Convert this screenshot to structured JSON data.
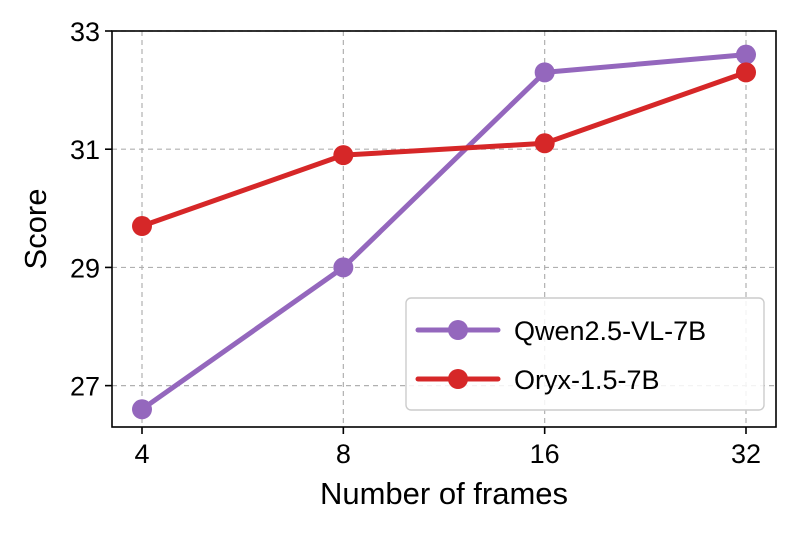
{
  "chart_data": {
    "type": "line",
    "title": "",
    "xlabel": "Number of frames",
    "ylabel": "Score",
    "categories": [
      "4",
      "8",
      "16",
      "32"
    ],
    "yticks": [
      "27",
      "29",
      "31",
      "33"
    ],
    "ylim": [
      26.3,
      33
    ],
    "grid": true,
    "legend_position": "lower-right",
    "series": [
      {
        "name": "Qwen2.5-VL-7B",
        "color": "#9467bd",
        "values": [
          26.6,
          29.0,
          32.3,
          32.6
        ]
      },
      {
        "name": "Oryx-1.5-7B",
        "color": "#d62728",
        "values": [
          29.7,
          30.9,
          31.1,
          32.3
        ]
      }
    ]
  }
}
